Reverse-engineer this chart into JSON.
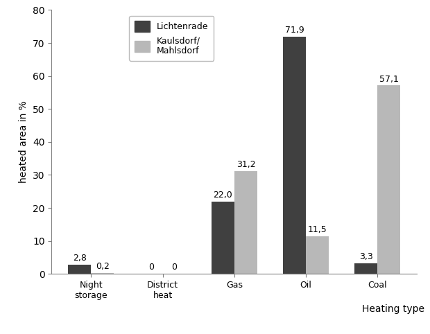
{
  "categories": [
    "Night\nstorage",
    "District\nheat",
    "Gas",
    "Oil",
    "Coal"
  ],
  "lichtenrade": [
    2.8,
    0,
    22.0,
    71.9,
    3.3
  ],
  "kaulsdorf": [
    0.2,
    0,
    31.2,
    11.5,
    57.1
  ],
  "lichtenrade_labels": [
    "2,8",
    "0",
    "22,0",
    "71,9",
    "3,3"
  ],
  "kaulsdorf_labels": [
    "0,2",
    "0",
    "31,2",
    "11,5",
    "57,1"
  ],
  "color_lichtenrade": "#404040",
  "color_kaulsdorf": "#b8b8b8",
  "ylabel": "heated area in %",
  "xlabel": "Heating type",
  "legend_label_1": "Lichtenrade",
  "legend_label_2": "Kaulsdorf/\nMahlsdorf",
  "ylim": [
    0,
    80
  ],
  "yticks": [
    0,
    10,
    20,
    30,
    40,
    50,
    60,
    70,
    80
  ],
  "bar_width": 0.32,
  "label_fontsize": 9,
  "axis_fontsize": 10
}
